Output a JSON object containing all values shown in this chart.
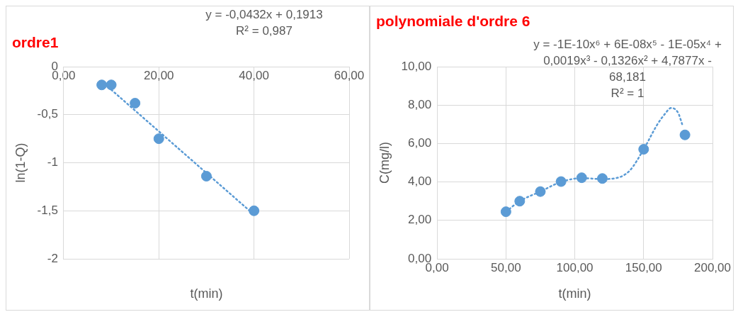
{
  "chart_data": [
    {
      "type": "scatter",
      "title": "ordre1",
      "xlabel": "t(min)",
      "ylabel": "ln(1-Q)",
      "annotations": [
        "y = -0,0432x + 0,1913",
        "R² = 0,987"
      ],
      "xlim": [
        0,
        60
      ],
      "xticks": [
        {
          "value": 0,
          "label": "0,00"
        },
        {
          "value": 20,
          "label": "20,00"
        },
        {
          "value": 40,
          "label": "40,00"
        },
        {
          "value": 60,
          "label": "60,00"
        }
      ],
      "ylim": [
        -2,
        0
      ],
      "yticks": [
        {
          "value": 0,
          "label": "0"
        },
        {
          "value": -0.5,
          "label": "-0,5"
        },
        {
          "value": -1,
          "label": "-1"
        },
        {
          "value": -1.5,
          "label": "-1,5"
        },
        {
          "value": -2,
          "label": "-2"
        }
      ],
      "grid": true,
      "series": [
        {
          "type": "scatter",
          "color": "#5b9bd5",
          "marker": "circle",
          "x": [
            8,
            10,
            15,
            20,
            30,
            40
          ],
          "values": [
            -0.19,
            -0.19,
            -0.38,
            -0.75,
            -1.14,
            -1.5
          ]
        },
        {
          "type": "line",
          "color": "#5b9bd5",
          "marker": "none",
          "line_style": "dotted",
          "x": [
            10,
            40
          ],
          "values": [
            -0.24,
            -1.54
          ]
        }
      ]
    },
    {
      "type": "scatter",
      "title": "polynomiale d'ordre 6",
      "xlabel": "t(min)",
      "ylabel": "C(mg/l)",
      "annotations": [
        "y = -1E-10x⁶ + 6E-08x⁵ - 1E-05x⁴ + 0,0019x³ - 0,1326x² + 4,7877x - 68,181",
        "R² = 1"
      ],
      "xlim": [
        0,
        200
      ],
      "xticks": [
        {
          "value": 0,
          "label": "0,00"
        },
        {
          "value": 50,
          "label": "50,00"
        },
        {
          "value": 100,
          "label": "100,00"
        },
        {
          "value": 150,
          "label": "150,00"
        },
        {
          "value": 200,
          "label": "200,00"
        }
      ],
      "ylim": [
        0,
        10
      ],
      "yticks": [
        {
          "value": 0,
          "label": "0,00"
        },
        {
          "value": 2,
          "label": "2,00"
        },
        {
          "value": 4,
          "label": "4,00"
        },
        {
          "value": 6,
          "label": "6,00"
        },
        {
          "value": 8,
          "label": "8,00"
        },
        {
          "value": 10,
          "label": "10,00"
        }
      ],
      "grid": true,
      "series": [
        {
          "type": "scatter",
          "color": "#5b9bd5",
          "marker": "circle",
          "x": [
            50,
            60,
            75,
            90,
            105,
            120,
            150,
            180
          ],
          "values": [
            2.45,
            3.0,
            3.5,
            4.02,
            4.22,
            4.18,
            5.7,
            6.45
          ]
        },
        {
          "type": "line",
          "color": "#5b9bd5",
          "marker": "none",
          "line_style": "dotted",
          "x": [
            50,
            60,
            75,
            90,
            105,
            120,
            130,
            140,
            150,
            160,
            165,
            170,
            175,
            178
          ],
          "values": [
            2.45,
            3.0,
            3.5,
            4.0,
            4.2,
            4.15,
            4.2,
            4.6,
            5.7,
            7.0,
            7.5,
            7.85,
            7.6,
            7.0
          ]
        }
      ]
    }
  ]
}
